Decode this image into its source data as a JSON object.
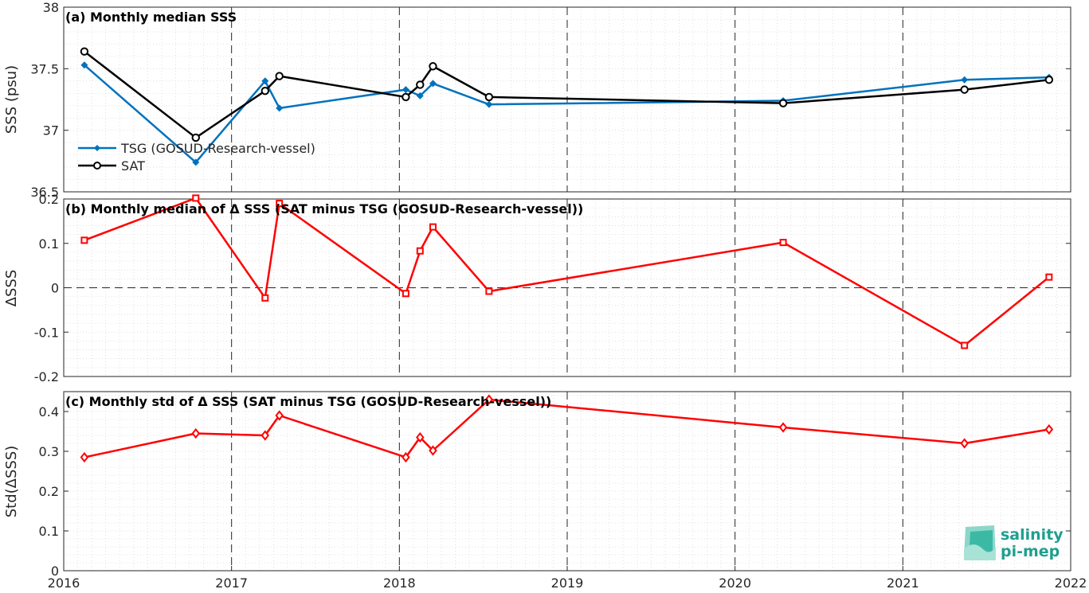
{
  "chart_data": [
    {
      "type": "line",
      "title": "(a) Monthly median SSS",
      "ylabel": "SSS (psu)",
      "xlim": [
        "2016-01-01",
        "2022-01-01"
      ],
      "ylim": [
        36.5,
        38
      ],
      "y_ticks": [
        "36.5",
        "37",
        "37.5",
        "38"
      ],
      "y_tick_values": [
        36.5,
        37,
        37.5,
        38
      ],
      "grid": true,
      "legend_position": "bottom-left",
      "series": [
        {
          "name": "TSG (GOSUD-Research-vessel)",
          "color": "#0072BD",
          "marker": "filled-diamond",
          "x": [
            "2016-02-15",
            "2016-10-15",
            "2017-03-15",
            "2017-04-15",
            "2018-01-15",
            "2018-02-15",
            "2018-03-15",
            "2018-07-15",
            "2020-04-15",
            "2021-05-15",
            "2021-11-15"
          ],
          "values": [
            37.53,
            36.74,
            37.4,
            37.18,
            37.33,
            37.28,
            37.38,
            37.21,
            37.24,
            37.41,
            37.43
          ]
        },
        {
          "name": "SAT",
          "color": "#000000",
          "marker": "open-circle",
          "x": [
            "2016-02-15",
            "2016-10-15",
            "2017-03-15",
            "2017-04-15",
            "2018-01-15",
            "2018-02-15",
            "2018-03-15",
            "2018-07-15",
            "2020-04-15",
            "2021-05-15",
            "2021-11-15"
          ],
          "values": [
            37.64,
            36.94,
            37.32,
            37.44,
            37.27,
            37.37,
            37.52,
            37.27,
            37.22,
            37.33,
            37.41
          ]
        }
      ]
    },
    {
      "type": "line",
      "title": "(b) Monthly median of Δ SSS (SAT minus TSG (GOSUD-Research-vessel))",
      "ylabel": "ΔSSS",
      "xlim": [
        "2016-01-01",
        "2022-01-01"
      ],
      "ylim": [
        -0.2,
        0.2
      ],
      "y_ticks": [
        "-0.2",
        "-0.1",
        "0",
        "0.1",
        "0.2"
      ],
      "y_tick_values": [
        -0.2,
        -0.1,
        0,
        0.1,
        0.2
      ],
      "grid": true,
      "zero_line": true,
      "series": [
        {
          "color": "#FF0000",
          "marker": "open-square",
          "x": [
            "2016-02-15",
            "2016-10-15",
            "2017-03-15",
            "2017-04-15",
            "2018-01-15",
            "2018-02-15",
            "2018-03-15",
            "2018-07-15",
            "2020-04-15",
            "2021-05-15",
            "2021-11-15"
          ],
          "values": [
            0.107,
            0.202,
            -0.023,
            0.19,
            -0.013,
            0.083,
            0.137,
            -0.008,
            0.102,
            -0.13,
            0.024
          ]
        }
      ]
    },
    {
      "type": "line",
      "title": "(c) Monthly std of Δ SSS (SAT minus TSG (GOSUD-Research-vessel))",
      "ylabel": "Std(ΔSSS)",
      "xlim": [
        "2016-01-01",
        "2022-01-01"
      ],
      "ylim": [
        0,
        0.45
      ],
      "y_ticks": [
        "0",
        "0.1",
        "0.2",
        "0.3",
        "0.4"
      ],
      "y_tick_values": [
        0,
        0.1,
        0.2,
        0.3,
        0.4
      ],
      "x_ticks": [
        "2016",
        "2017",
        "2018",
        "2019",
        "2020",
        "2021",
        "2022"
      ],
      "grid": true,
      "series": [
        {
          "color": "#FF0000",
          "marker": "open-diamond",
          "x": [
            "2016-02-15",
            "2016-10-15",
            "2017-03-15",
            "2017-04-15",
            "2018-01-15",
            "2018-02-15",
            "2018-03-15",
            "2018-07-15",
            "2020-04-15",
            "2021-05-15",
            "2021-11-15"
          ],
          "values": [
            0.285,
            0.345,
            0.34,
            0.39,
            0.285,
            0.335,
            0.302,
            0.43,
            0.36,
            0.32,
            0.355
          ]
        }
      ]
    }
  ],
  "logo": {
    "line1": "salinity",
    "line2": "pi-mep",
    "color": "#1f9f8f"
  }
}
